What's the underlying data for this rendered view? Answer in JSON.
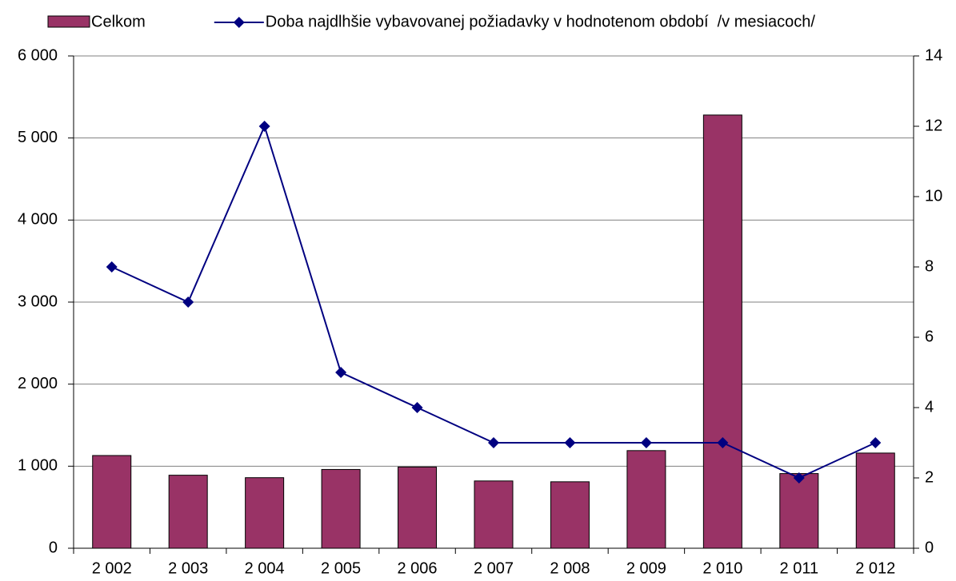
{
  "chart_data": {
    "type": "combo",
    "categories": [
      "2 002",
      "2 003",
      "2 004",
      "2 005",
      "2 006",
      "2 007",
      "2 008",
      "2 009",
      "2 010",
      "2 011",
      "2 012"
    ],
    "series": [
      {
        "name": "Celkom",
        "type": "bar",
        "color": "#993366",
        "values": [
          1130,
          890,
          860,
          960,
          990,
          820,
          810,
          1190,
          5280,
          910,
          1160
        ]
      },
      {
        "name": "Doba najdlhšie vybavovanej požiadavky v hodnotenom období  /v mesiacoch/",
        "type": "line",
        "axis": "y2",
        "color": "#000080",
        "values": [
          8,
          7,
          12,
          5,
          4,
          3,
          3,
          3,
          3,
          2,
          3
        ]
      }
    ],
    "ylim": [
      0,
      6000
    ],
    "yticks": [
      0,
      {
        "value": 1000,
        "label": "1 000"
      },
      {
        "value": 2000,
        "label": "2 000"
      },
      {
        "value": 3000,
        "label": "3 000"
      },
      {
        "value": 4000,
        "label": "4 000"
      },
      {
        "value": 5000,
        "label": "5 000"
      },
      {
        "value": 6000,
        "label": "6 000"
      }
    ],
    "y2lim": [
      0,
      14
    ],
    "y2ticks": [
      0,
      2,
      4,
      6,
      8,
      10,
      12,
      14
    ],
    "grid": true,
    "legend": "top"
  }
}
